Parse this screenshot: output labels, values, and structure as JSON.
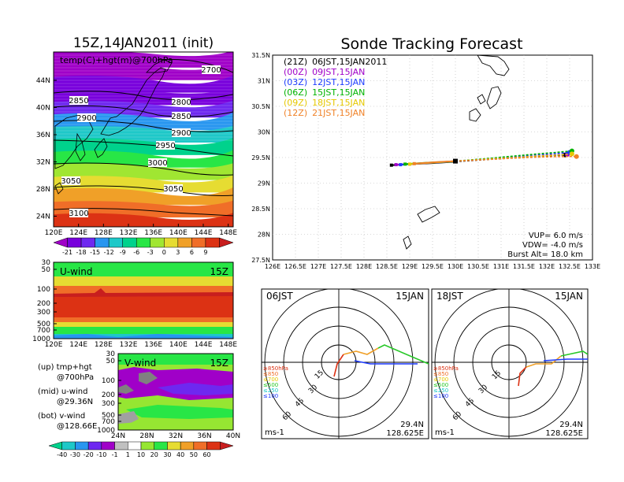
{
  "left_title": "15Z,14JAN2011 (init)",
  "right_title": "Sonde Tracking Forecast",
  "colors": {
    "temp_scale": [
      "#a000c8",
      "#7800dc",
      "#6e28f0",
      "#2896f0",
      "#1ec8c8",
      "#00d28c",
      "#28e646",
      "#a0e632",
      "#e6dc32",
      "#f0a028",
      "#f06e28",
      "#dc3214",
      "#c81e1e"
    ],
    "wind_scale": [
      "#00d28c",
      "#1ec8c8",
      "#2896f0",
      "#6e28f0",
      "#a000c8",
      "#c0c0c0",
      "#ffffff",
      "#96e632",
      "#28e646",
      "#e6dc32",
      "#f0a028",
      "#f06e28",
      "#dc3214",
      "#c81e1e"
    ],
    "track_21z": "#000000",
    "track_00z": "#a000c8",
    "track_03z": "#1e3cff",
    "track_06z": "#00b400",
    "track_09z": "#e6c800",
    "track_12z": "#f08228"
  },
  "top_map": {
    "label": "temp(C)+hgt(m)@700hPa",
    "x_ticks": [
      "120E",
      "124E",
      "128E",
      "132E",
      "136E",
      "140E",
      "144E",
      "148E"
    ],
    "y_ticks": [
      "44N",
      "40N",
      "36N",
      "32N",
      "28N",
      "24N"
    ],
    "contour_labels": [
      "2700",
      "2800",
      "2850",
      "2850",
      "2900",
      "2900",
      "2950",
      "3000",
      "3050",
      "3050",
      "3100"
    ],
    "colorbar": [
      "-21",
      "-18",
      "-15",
      "-12",
      "-9",
      "-6",
      "-3",
      "0",
      "3",
      "6",
      "9"
    ]
  },
  "u_wind": {
    "label": "U-wind",
    "time": "15Z",
    "y_ticks": [
      "30",
      "50",
      "100",
      "200",
      "300",
      "500",
      "700",
      "1000"
    ],
    "x_ticks": [
      "120E",
      "124E",
      "128E",
      "132E",
      "136E",
      "140E",
      "144E",
      "148E"
    ]
  },
  "v_wind": {
    "label": "V-wind",
    "time": "15Z",
    "y_ticks": [
      "30",
      "50",
      "100",
      "200",
      "300",
      "500",
      "700",
      "1000"
    ],
    "x_ticks": [
      "24N",
      "28N",
      "32N",
      "36N",
      "40N"
    ],
    "colorbar": [
      "-40",
      "-30",
      "-20",
      "-10",
      "-1",
      "1",
      "10",
      "20",
      "30",
      "40",
      "50",
      "60"
    ]
  },
  "legend_notes": [
    {
      "title": "(up) tmp+hgt",
      "detail": "@700hPa"
    },
    {
      "title": "(mid) u-wind",
      "detail": "@29.36N"
    },
    {
      "title": "(bot) v-wind",
      "detail": "@128.66E"
    }
  ],
  "track_map": {
    "x_ticks": [
      "126E",
      "126.5E",
      "127E",
      "127.5E",
      "128E",
      "128.5E",
      "129E",
      "129.5E",
      "130E",
      "130.5E",
      "131E",
      "131.5E",
      "132E",
      "132.5E",
      "133E"
    ],
    "y_ticks": [
      "31.5N",
      "31N",
      "30.5N",
      "30N",
      "29.5N",
      "29N",
      "28.5N",
      "28N",
      "27.5N"
    ],
    "legend": [
      {
        "code": "(21Z)",
        "time": "06JST,15JAN2011"
      },
      {
        "code": "(00Z)",
        "time": "09JST,15JAN"
      },
      {
        "code": "(03Z)",
        "time": "12JST,15JAN"
      },
      {
        "code": "(06Z)",
        "time": "15JST,15JAN"
      },
      {
        "code": "(09Z)",
        "time": "18JST,15JAN"
      },
      {
        "code": "(12Z)",
        "time": "21JST,15JAN"
      }
    ],
    "vup": "VUP=  6.0  m/s",
    "vdw": "VDW= -4.0  m/s",
    "burst": "Burst Alt= 18.0  km"
  },
  "hodographs": [
    {
      "time": "06JST",
      "date": "15JAN",
      "lat": "29.4N",
      "lon": "128.625E",
      "units": "ms-1"
    },
    {
      "time": "18JST",
      "date": "15JAN",
      "lat": "29.4N",
      "lon": "128.625E",
      "units": "ms-1"
    }
  ],
  "hodo_ring_labels": [
    "15",
    "30",
    "45",
    "60"
  ],
  "hodo_levels": [
    "≥850hPa",
    "≤850",
    "≤700",
    "≤500",
    "≤250",
    "≤100"
  ],
  "chart_data": {
    "type": "line",
    "title": "Sonde Tracking Forecast",
    "xlabel": "",
    "ylabel": "",
    "xlim": [
      126,
      133
    ],
    "ylim": [
      27.5,
      31.5
    ],
    "series": [
      {
        "name": "(21Z) 06JST,15JAN2011",
        "points": [
          [
            128.6,
            29.35
          ],
          [
            129.0,
            29.37
          ],
          [
            129.5,
            29.39
          ],
          [
            130.0,
            29.42
          ],
          [
            130.5,
            29.45
          ],
          [
            131.0,
            29.48
          ],
          [
            131.5,
            29.51
          ],
          [
            132.0,
            29.53
          ],
          [
            132.4,
            29.55
          ]
        ]
      },
      {
        "name": "(00Z) 09JST,15JAN",
        "points": [
          [
            128.7,
            29.36
          ],
          [
            129.2,
            29.38
          ],
          [
            129.7,
            29.41
          ],
          [
            130.0,
            29.43
          ],
          [
            130.6,
            29.46
          ],
          [
            131.1,
            29.49
          ],
          [
            131.6,
            29.52
          ],
          [
            132.1,
            29.55
          ],
          [
            132.45,
            29.56
          ]
        ]
      },
      {
        "name": "(03Z) 12JST,15JAN",
        "points": [
          [
            128.8,
            29.36
          ],
          [
            129.3,
            29.39
          ],
          [
            129.8,
            29.41
          ],
          [
            130.0,
            29.43
          ],
          [
            130.6,
            29.47
          ],
          [
            131.2,
            29.51
          ],
          [
            131.7,
            29.55
          ],
          [
            132.2,
            29.58
          ],
          [
            132.5,
            29.6
          ]
        ]
      },
      {
        "name": "(06Z) 15JST,15JAN",
        "points": [
          [
            128.9,
            29.37
          ],
          [
            129.4,
            29.4
          ],
          [
            129.9,
            29.42
          ],
          [
            130.0,
            29.43
          ],
          [
            130.7,
            29.48
          ],
          [
            131.3,
            29.53
          ],
          [
            131.8,
            29.57
          ],
          [
            132.2,
            29.6
          ],
          [
            132.55,
            29.63
          ]
        ]
      },
      {
        "name": "(09Z) 18JST,15JAN",
        "points": [
          [
            129.0,
            29.37
          ],
          [
            129.5,
            29.4
          ],
          [
            130.0,
            29.43
          ],
          [
            130.7,
            29.47
          ],
          [
            131.3,
            29.5
          ],
          [
            131.8,
            29.53
          ],
          [
            132.3,
            29.55
          ],
          [
            132.55,
            29.57
          ]
        ]
      },
      {
        "name": "(12Z) 21JST,15JAN",
        "points": [
          [
            129.1,
            29.38
          ],
          [
            129.6,
            29.41
          ],
          [
            130.0,
            29.43
          ],
          [
            130.7,
            29.46
          ],
          [
            131.3,
            29.49
          ],
          [
            131.9,
            29.51
          ],
          [
            132.4,
            29.52
          ],
          [
            132.65,
            29.52
          ]
        ]
      }
    ]
  }
}
